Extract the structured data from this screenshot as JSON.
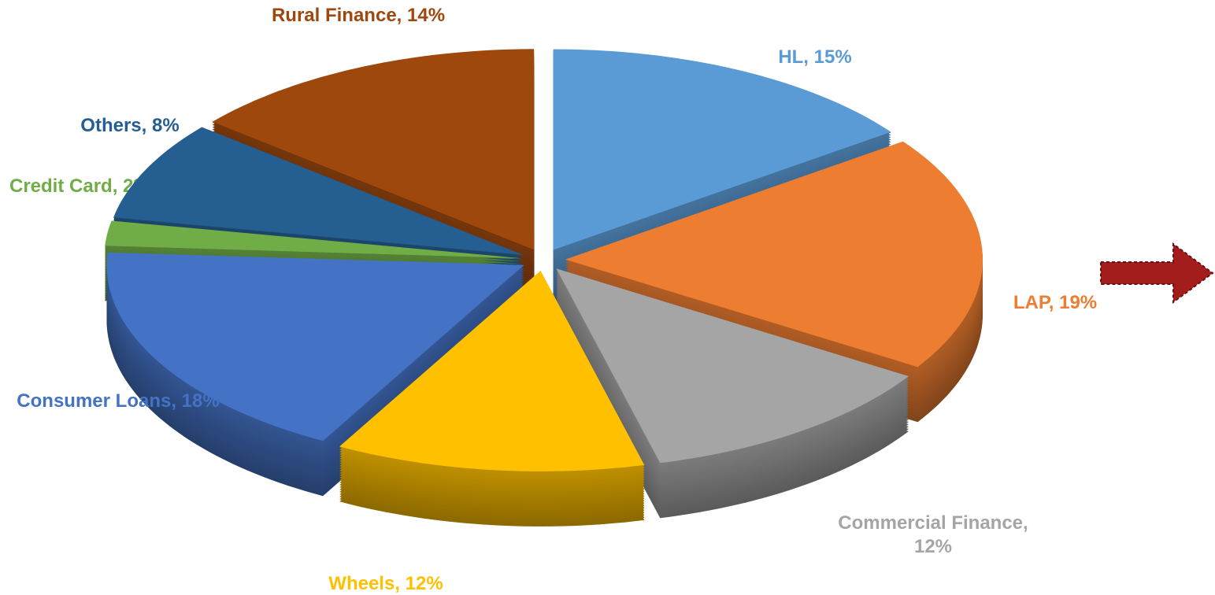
{
  "chart_data": {
    "type": "pie",
    "categories": [
      "HL",
      "LAP",
      "Commercial Finance",
      "Wheels",
      "Consumer Loans",
      "Credit Card",
      "Others",
      "Rural Finance"
    ],
    "values": [
      15,
      19,
      12,
      12,
      18,
      2,
      8,
      14
    ],
    "value_labels": [
      "HL, 15%",
      "LAP, 19%",
      "Commercial Finance, 12%",
      "Wheels, 12%",
      "Consumer Loans, 18%",
      "Credit Card, 2%",
      "Others, 8%",
      "Rural Finance, 14%"
    ],
    "colors": [
      "#5b9bd5",
      "#ed7d31",
      "#a5a5a5",
      "#ffc000",
      "#4472c4",
      "#70ad47",
      "#255e91",
      "#9e480e"
    ]
  }
}
